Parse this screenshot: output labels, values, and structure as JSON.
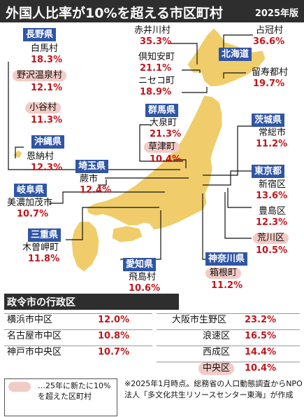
{
  "title": "外国人比率が10%を超える市区町村",
  "edition": "2025年版",
  "colors": {
    "land": "#f0cd6a",
    "pref_box": "#2f55a5",
    "highlight": "#f3cbc6",
    "percent": "#c4151c",
    "header": "#2e2e2e"
  },
  "prefectures": {
    "nagano": "長野県",
    "hokkaido": "北海道",
    "gunma": "群馬県",
    "okinawa": "沖縄県",
    "saitama": "埼玉県",
    "ibaraki": "茨城県",
    "tokyo": "東京都",
    "gifu": "岐阜県",
    "mie": "三重県",
    "aichi": "愛知県",
    "kanagawa": "神奈川県"
  },
  "places": {
    "hakuba": {
      "name": "白馬村",
      "pct": "18.3%"
    },
    "nozawa": {
      "name": "野沢温泉村",
      "pct": "12.1%"
    },
    "otari": {
      "name": "小谷村",
      "pct": "11.3%"
    },
    "akaigawa": {
      "name": "赤井川村",
      "pct": "35.3%"
    },
    "shimukappu": {
      "name": "占冠村",
      "pct": "36.6%"
    },
    "kutchan": {
      "name": "倶知安町",
      "pct": "21.1%"
    },
    "niseko": {
      "name": "ニセコ町",
      "pct": "18.9%"
    },
    "rusutsu": {
      "name": "留寿都村",
      "pct": "19.7%"
    },
    "oizumi": {
      "name": "大泉町",
      "pct": "21.3%"
    },
    "kusatsu": {
      "name": "草津町",
      "pct": "10.4%"
    },
    "onna": {
      "name": "恩納村",
      "pct": "12.3%"
    },
    "warabi": {
      "name": "蕨市",
      "pct": "12.4%"
    },
    "joso": {
      "name": "常総市",
      "pct": "11.2%"
    },
    "shinjuku": {
      "name": "新宿区",
      "pct": "13.6%"
    },
    "toshima": {
      "name": "豊島区",
      "pct": "12.3%"
    },
    "arakawa": {
      "name": "荒川区",
      "pct": "10.5%"
    },
    "minokamo": {
      "name": "美濃加茂市",
      "pct": "10.7%"
    },
    "kisosaki": {
      "name": "木曽岬町",
      "pct": "11.8%"
    },
    "tobishima": {
      "name": "飛島村",
      "pct": "10.6%"
    },
    "hakone": {
      "name": "箱根町",
      "pct": "11.2%"
    }
  },
  "ward_section": {
    "title": "政令市の行政区",
    "left": [
      {
        "name": "横浜市中区",
        "pct": "12.0%"
      },
      {
        "name": "名古屋市中区",
        "pct": "10.8%"
      },
      {
        "name": "神戸市中央区",
        "pct": "10.7%"
      }
    ],
    "right": [
      {
        "name": "大阪市生野区",
        "pct": "23.2%"
      },
      {
        "name": "浪速区",
        "pct": "16.5%"
      },
      {
        "name": "西成区",
        "pct": "14.4%"
      },
      {
        "name": "中央区",
        "pct": "10.4%"
      }
    ]
  },
  "legend": {
    "text": "…25年に新たに10%を超えた区町村"
  },
  "footnote": "※2025年1月時点。総務省の人口動態調査からNPO法人「多文化共生リソースセンター東海」が作成"
}
